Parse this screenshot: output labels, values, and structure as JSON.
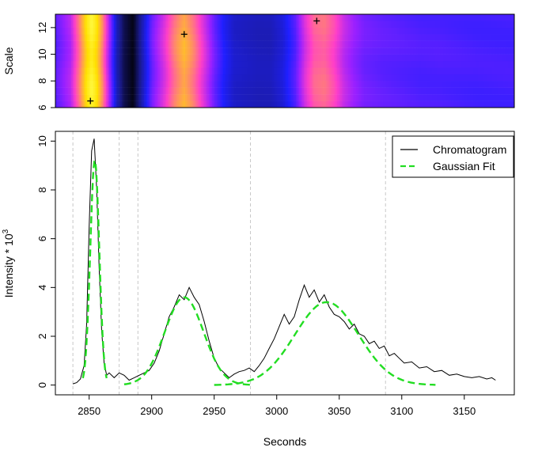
{
  "chart_data": [
    {
      "type": "heatmap",
      "title": "",
      "xlabel": "",
      "ylabel": "Scale",
      "xlim": [
        2823,
        3190
      ],
      "ylim": [
        6,
        13
      ],
      "y_ticks": [
        6,
        8,
        10,
        12
      ],
      "color_stops": [
        "#000000",
        "#1a1a8c",
        "#1f1fff",
        "#9a20ff",
        "#ff3fc8",
        "#ff9a55",
        "#ffe000",
        "#ffff50"
      ],
      "columns_x": [
        2823,
        2835,
        2843,
        2848,
        2852,
        2856,
        2861,
        2866,
        2872,
        2878,
        2885,
        2893,
        2900,
        2910,
        2918,
        2926,
        2934,
        2942,
        2950,
        2958,
        2966,
        2975,
        2985,
        2995,
        3005,
        3015,
        3023,
        3030,
        3038,
        3046,
        3054,
        3062,
        3070,
        3085,
        3100,
        3115,
        3130,
        3160,
        3190
      ],
      "column_intensity": [
        0.35,
        0.46,
        0.68,
        0.86,
        0.94,
        0.86,
        0.66,
        0.44,
        0.2,
        0.08,
        0.02,
        0.2,
        0.37,
        0.52,
        0.66,
        0.76,
        0.66,
        0.52,
        0.38,
        0.28,
        0.22,
        0.21,
        0.2,
        0.2,
        0.24,
        0.35,
        0.52,
        0.62,
        0.64,
        0.58,
        0.48,
        0.42,
        0.38,
        0.36,
        0.35,
        0.34,
        0.34,
        0.33,
        0.33
      ],
      "maxima": [
        {
          "x": 2851,
          "scale": 6.5
        },
        {
          "x": 2926,
          "scale": 11.5
        },
        {
          "x": 3032,
          "scale": 12.5
        }
      ]
    },
    {
      "type": "line",
      "title": "",
      "xlabel": "Seconds",
      "ylabel": "Intensity * 10",
      "ylabel_superscript": "3",
      "xlim": [
        2823,
        3190
      ],
      "ylim": [
        -0.4,
        10.4
      ],
      "x_ticks": [
        2850,
        2900,
        2950,
        3000,
        3050,
        3100,
        3150
      ],
      "y_ticks": [
        0,
        2,
        4,
        6,
        8,
        10
      ],
      "grid": false,
      "boundary_lines_x": [
        2837,
        2874,
        2889,
        2979,
        3087
      ],
      "legend": {
        "placement": "top-right",
        "entries": [
          "Chromatogram",
          "Gaussian Fit"
        ]
      },
      "series": [
        {
          "name": "Chromatogram",
          "color": "#000000",
          "style": "solid",
          "x": [
            2837,
            2840,
            2843,
            2846,
            2848,
            2850,
            2852,
            2854,
            2856,
            2858,
            2860,
            2862,
            2864,
            2866,
            2870,
            2874,
            2878,
            2882,
            2886,
            2890,
            2894,
            2898,
            2902,
            2906,
            2910,
            2914,
            2918,
            2922,
            2926,
            2930,
            2934,
            2938,
            2942,
            2946,
            2950,
            2954,
            2958,
            2962,
            2966,
            2970,
            2974,
            2978,
            2982,
            2986,
            2990,
            2994,
            2998,
            3002,
            3006,
            3010,
            3014,
            3018,
            3022,
            3026,
            3030,
            3034,
            3038,
            3042,
            3046,
            3050,
            3054,
            3058,
            3062,
            3066,
            3070,
            3074,
            3078,
            3082,
            3086,
            3090,
            3094,
            3098,
            3102,
            3108,
            3114,
            3120,
            3126,
            3132,
            3138,
            3144,
            3150,
            3156,
            3162,
            3168,
            3172,
            3175
          ],
          "y": [
            0.05,
            0.1,
            0.25,
            0.8,
            2.5,
            6.5,
            9.6,
            10.1,
            8.0,
            4.8,
            2.2,
            0.9,
            0.4,
            0.5,
            0.3,
            0.5,
            0.4,
            0.2,
            0.3,
            0.4,
            0.5,
            0.6,
            0.9,
            1.4,
            2.1,
            2.8,
            3.2,
            3.7,
            3.5,
            4.0,
            3.6,
            3.3,
            2.6,
            1.8,
            1.1,
            0.7,
            0.5,
            0.3,
            0.45,
            0.55,
            0.6,
            0.7,
            0.55,
            0.8,
            1.1,
            1.5,
            1.9,
            2.4,
            2.9,
            2.5,
            2.8,
            3.5,
            4.1,
            3.6,
            3.9,
            3.4,
            3.7,
            3.2,
            2.9,
            2.8,
            2.6,
            2.3,
            2.5,
            2.1,
            2.0,
            1.7,
            1.8,
            1.5,
            1.6,
            1.2,
            1.3,
            1.1,
            0.9,
            0.95,
            0.7,
            0.75,
            0.55,
            0.6,
            0.4,
            0.45,
            0.35,
            0.3,
            0.35,
            0.25,
            0.3,
            0.2
          ]
        },
        {
          "name": "Gaussian Fit",
          "color": "#22dd22",
          "style": "dashed",
          "components": [
            {
              "center": 2854.5,
              "amplitude": 9.2,
              "sd": 3.6,
              "x_range": [
                2845,
                2864
              ]
            },
            {
              "center": 2926,
              "amplitude": 3.6,
              "sd": 15.5,
              "x_range": [
                2878,
                2979
              ]
            },
            {
              "center": 3040,
              "amplitude": 3.4,
              "sd": 25.5,
              "x_range": [
                2950,
                3127
              ]
            }
          ]
        }
      ]
    }
  ]
}
